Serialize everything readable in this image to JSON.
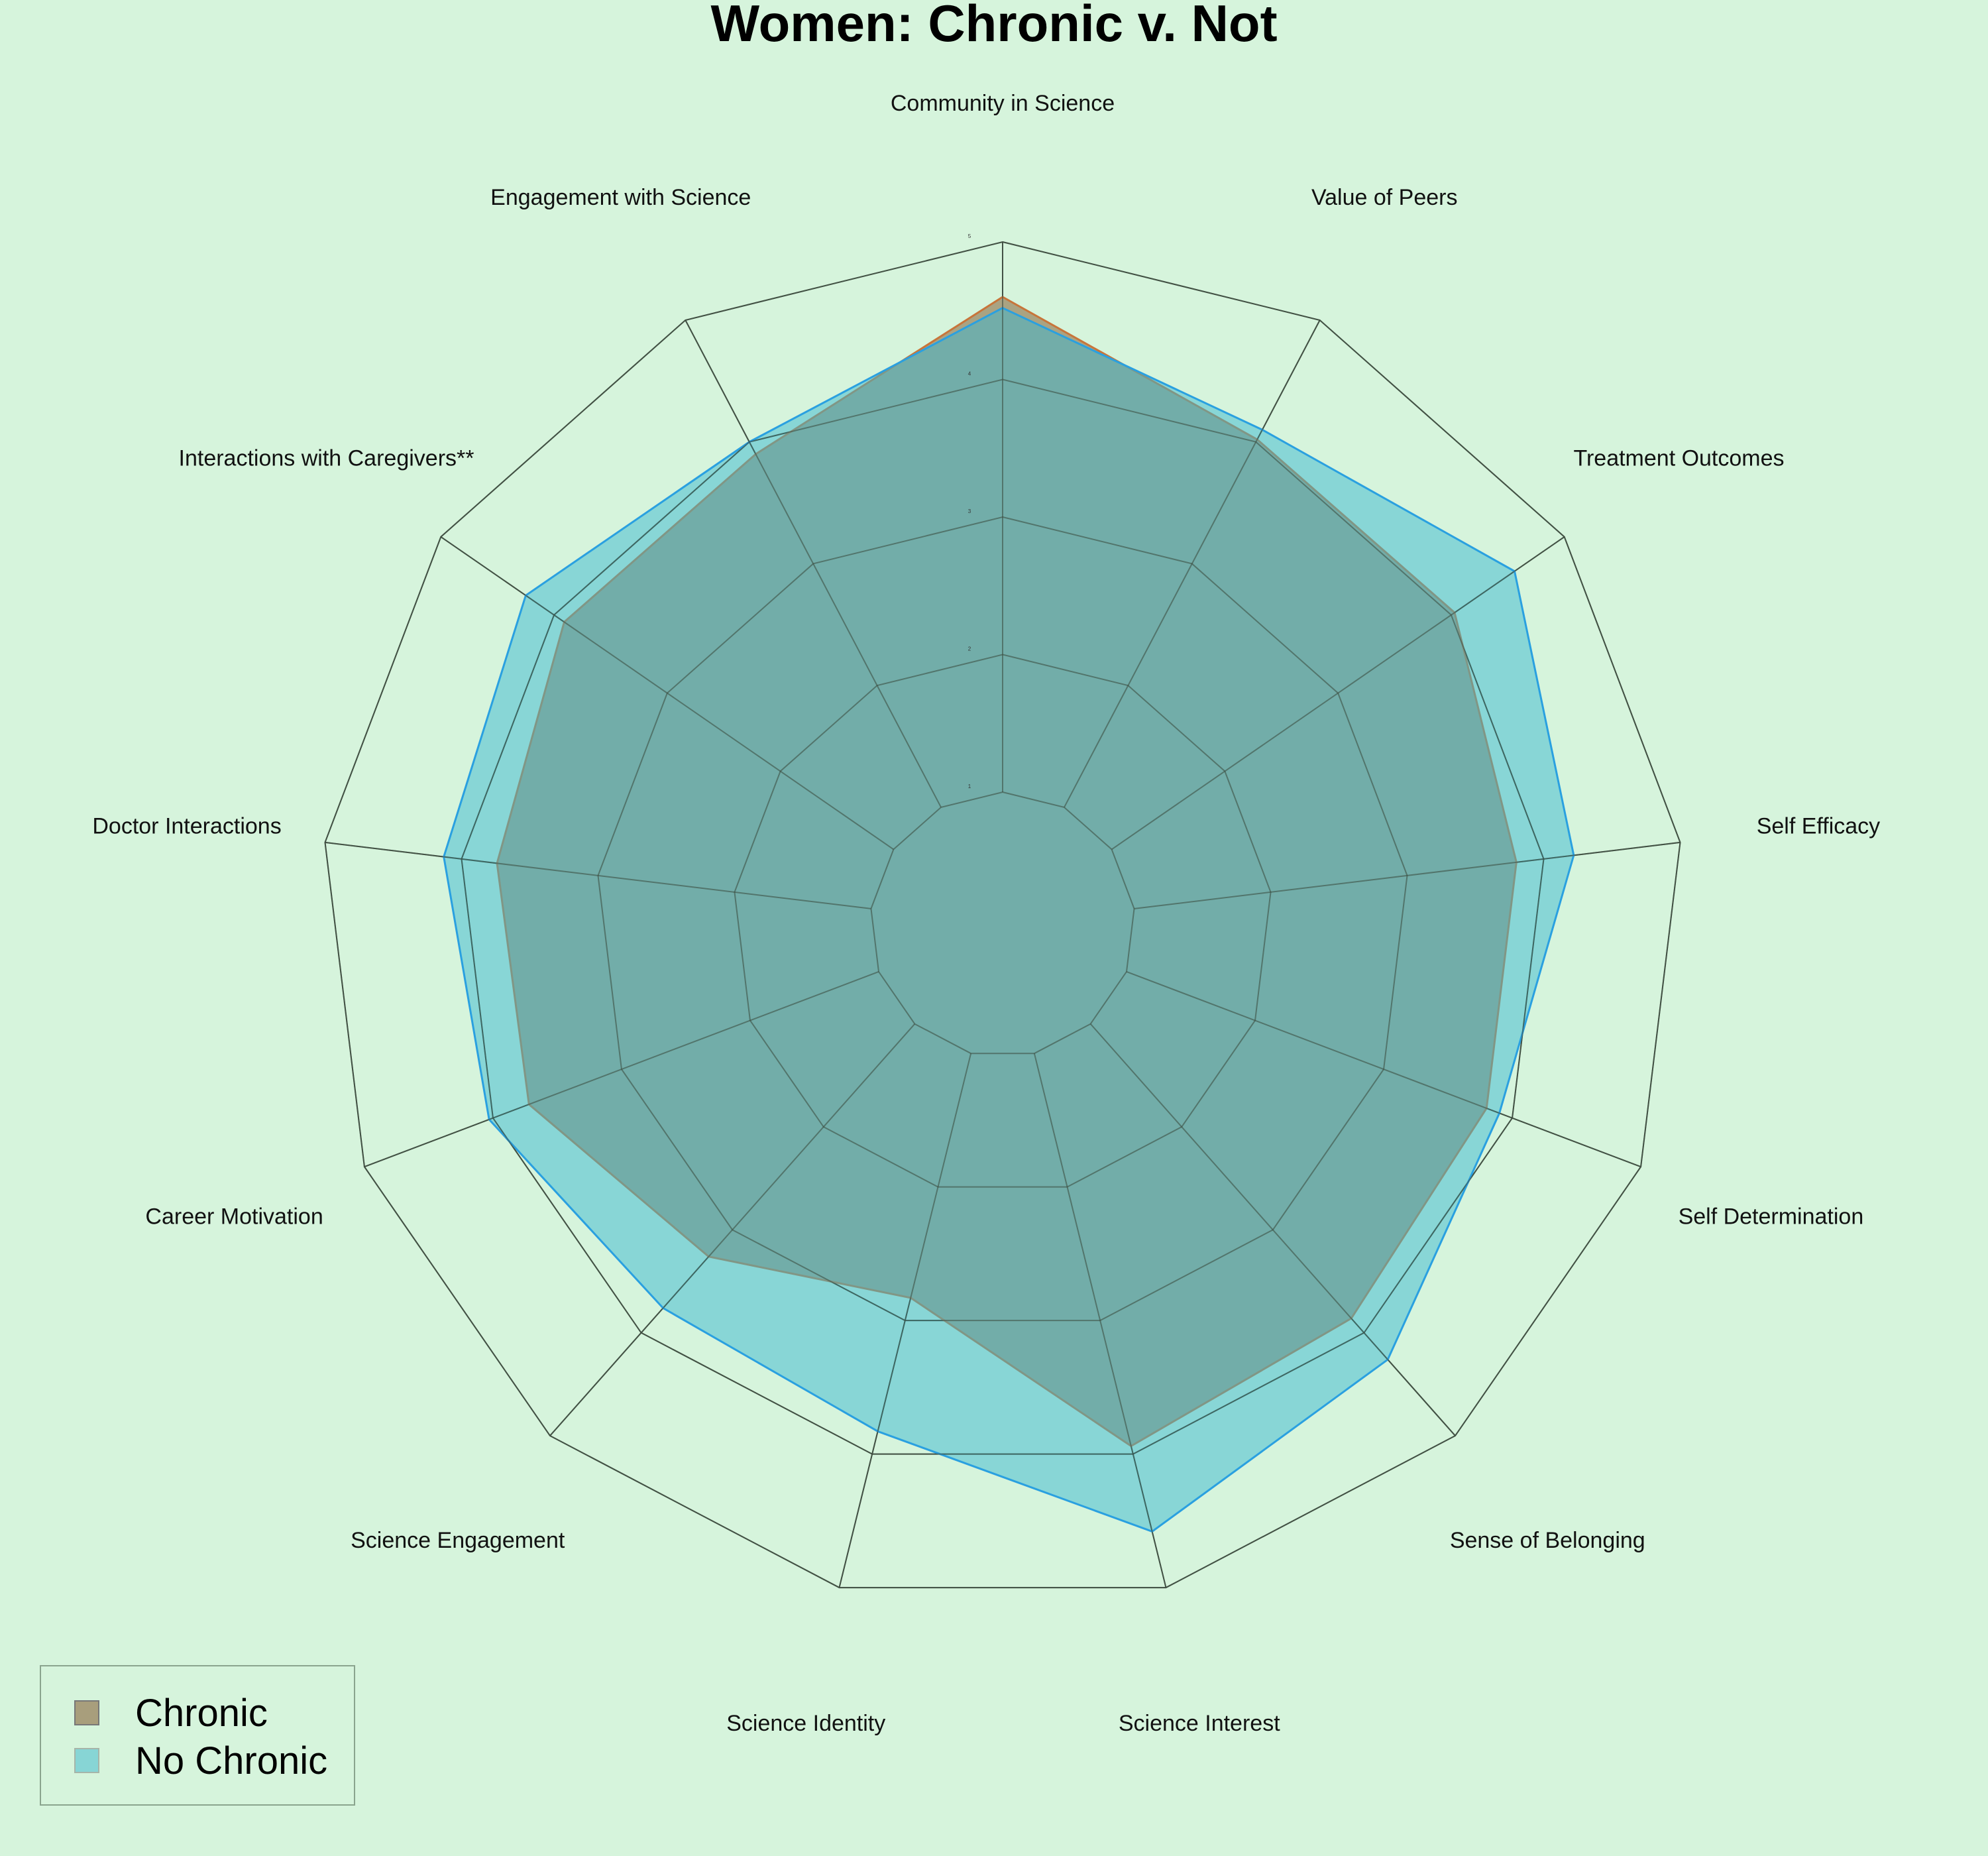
{
  "chart_data": {
    "type": "radar",
    "title": "Women: Chronic v. Not",
    "axes": [
      "Community in Science",
      "Value of Peers",
      "Treatment Outcomes",
      "Self Efficacy",
      "Self Determination",
      "Sense of Belonging",
      "Science Interest",
      "Science Identity",
      "Science Engagement",
      "Career Motivation",
      "Doctor Interactions",
      "Interactions with Caregivers**",
      "Engagement with Science"
    ],
    "range": [
      1,
      5
    ],
    "ticks": [
      "1",
      "2",
      "3",
      "4",
      "5"
    ],
    "series": [
      {
        "name": "Chronic",
        "color": "#a89e7c",
        "edge_color": "#c8753a",
        "values": [
          4.6,
          4.02,
          4.03,
          3.8,
          3.8,
          3.86,
          3.94,
          2.83,
          3.26,
          3.72,
          3.74,
          3.91,
          3.9
        ]
      },
      {
        "name": "No Chronic",
        "color": "#3ab8d0",
        "edge_color": "#2aa0e0",
        "values": [
          4.52,
          4.1,
          4.56,
          4.22,
          3.9,
          4.26,
          4.58,
          3.83,
          3.76,
          4.03,
          4.13,
          4.25,
          4.0
        ]
      }
    ],
    "legend_position": "bottom-left"
  }
}
